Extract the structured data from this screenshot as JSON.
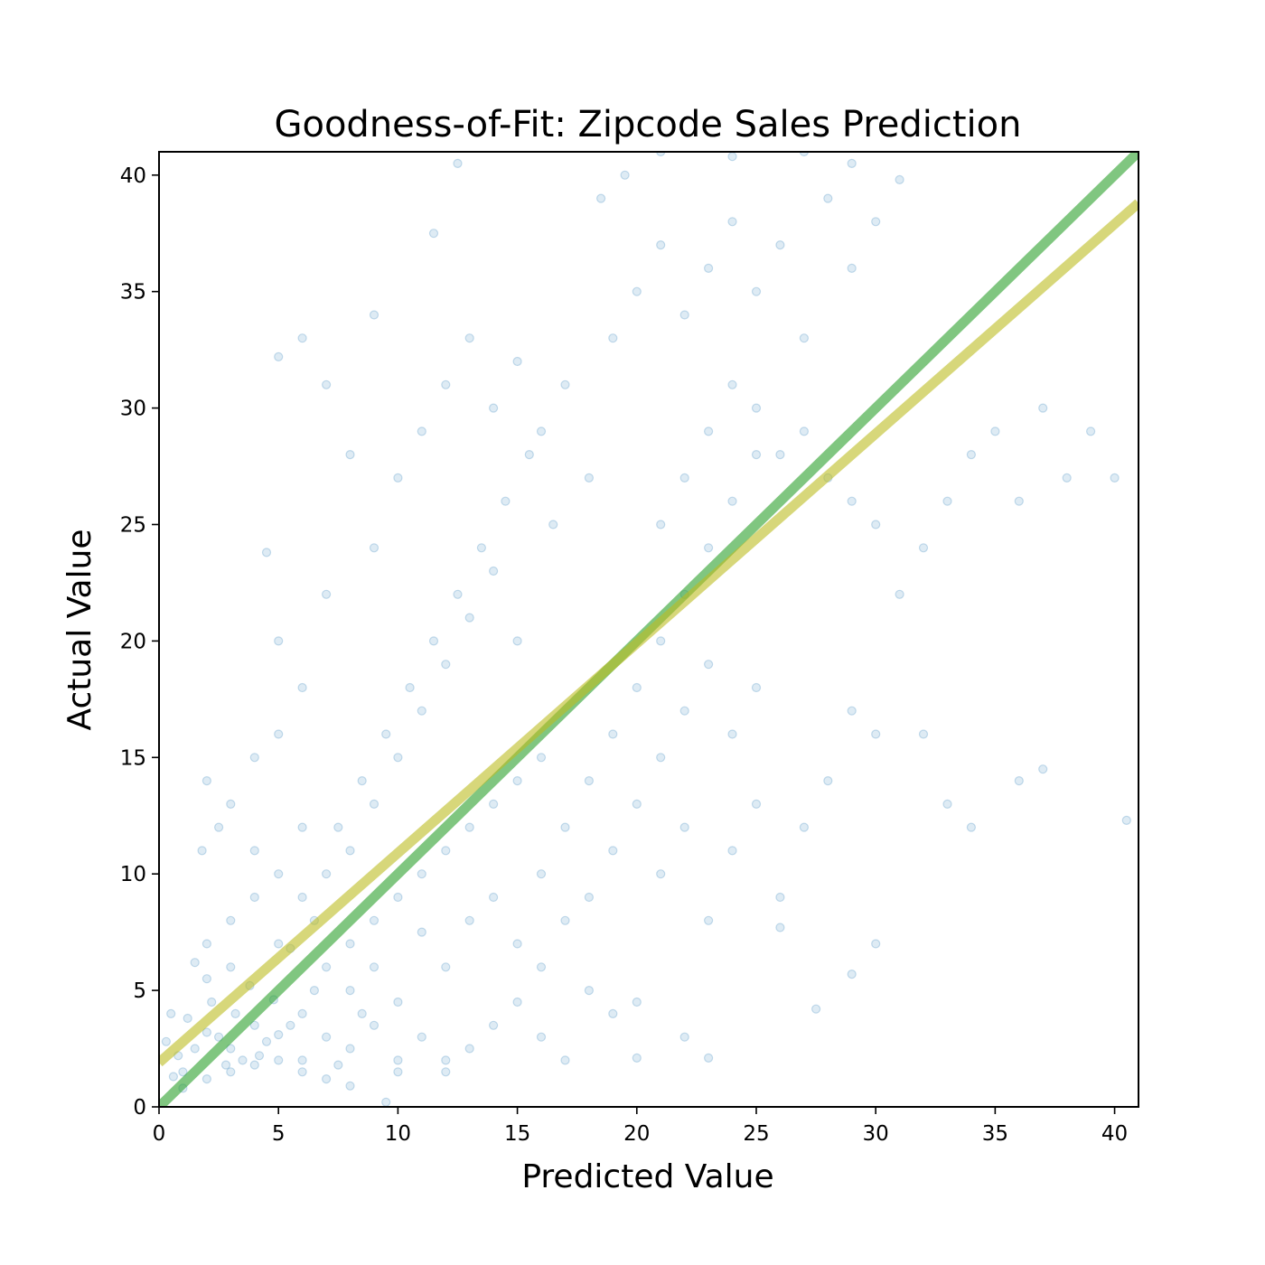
{
  "chart_data": {
    "type": "scatter",
    "title": "Goodness-of-Fit: Zipcode Sales Prediction",
    "xlabel": "Predicted Value",
    "ylabel": "Actual Value",
    "xlim": [
      0,
      41
    ],
    "ylim": [
      0,
      41
    ],
    "xticks": [
      "0",
      "5",
      "10",
      "15",
      "20",
      "25",
      "30",
      "35",
      "40"
    ],
    "yticks": [
      "0",
      "5",
      "10",
      "15",
      "20",
      "25",
      "30",
      "35",
      "40"
    ],
    "grid": false,
    "legend": "none",
    "series": [
      {
        "kind": "scatter",
        "color": "#1f77b4",
        "alpha": 0.15,
        "points": [
          [
            3,
            2.5
          ],
          [
            2.5,
            3
          ],
          [
            4,
            3.5
          ],
          [
            3.5,
            2
          ],
          [
            1,
            1.5
          ],
          [
            1.5,
            2.5
          ],
          [
            2,
            3.2
          ],
          [
            4.5,
            2.8
          ],
          [
            5,
            3.1
          ],
          [
            3.2,
            4
          ],
          [
            2.8,
            1.8
          ],
          [
            4.2,
            2.2
          ],
          [
            5.5,
            3.5
          ],
          [
            6,
            4
          ],
          [
            1.2,
            3.8
          ],
          [
            0.8,
            2.2
          ],
          [
            2.2,
            4.5
          ],
          [
            3.8,
            5.2
          ],
          [
            4.8,
            4.6
          ],
          [
            6.5,
            5
          ],
          [
            7,
            6
          ],
          [
            8,
            7
          ],
          [
            9,
            8
          ],
          [
            10,
            9
          ],
          [
            11,
            10
          ],
          [
            12,
            11
          ],
          [
            13,
            12
          ],
          [
            14,
            13
          ],
          [
            15,
            14
          ],
          [
            16,
            15
          ],
          [
            7.5,
            12
          ],
          [
            8.5,
            14
          ],
          [
            9.5,
            16
          ],
          [
            10.5,
            18
          ],
          [
            11.5,
            20
          ],
          [
            12.5,
            22
          ],
          [
            13.5,
            24
          ],
          [
            14.5,
            26
          ],
          [
            15.5,
            28
          ],
          [
            16.5,
            25
          ],
          [
            6,
            9
          ],
          [
            7,
            10
          ],
          [
            8,
            11
          ],
          [
            9,
            13
          ],
          [
            10,
            15
          ],
          [
            11,
            17
          ],
          [
            12,
            19
          ],
          [
            13,
            21
          ],
          [
            14,
            23
          ],
          [
            15,
            20
          ],
          [
            5,
            7
          ],
          [
            6.5,
            8
          ],
          [
            8,
            5
          ],
          [
            9,
            6
          ],
          [
            10,
            4.5
          ],
          [
            11,
            7.5
          ],
          [
            12,
            6
          ],
          [
            13,
            8
          ],
          [
            14,
            9
          ],
          [
            15,
            7
          ],
          [
            16,
            10
          ],
          [
            17,
            12
          ],
          [
            18,
            14
          ],
          [
            19,
            16
          ],
          [
            20,
            18
          ],
          [
            21,
            20
          ],
          [
            22,
            22
          ],
          [
            23,
            24
          ],
          [
            24,
            26
          ],
          [
            25,
            28
          ],
          [
            16,
            6
          ],
          [
            17,
            8
          ],
          [
            18,
            9
          ],
          [
            19,
            11
          ],
          [
            20,
            13
          ],
          [
            21,
            15
          ],
          [
            22,
            17
          ],
          [
            23,
            19
          ],
          [
            24,
            16
          ],
          [
            25,
            18
          ],
          [
            3,
            8
          ],
          [
            4,
            9
          ],
          [
            2,
            7
          ],
          [
            5,
            10
          ],
          [
            6,
            12
          ],
          [
            4,
            11
          ],
          [
            3,
            6
          ],
          [
            2,
            5.5
          ],
          [
            1.5,
            6.2
          ],
          [
            5.5,
            6.8
          ],
          [
            7,
            3
          ],
          [
            8,
            2.5
          ],
          [
            9,
            3.5
          ],
          [
            6,
            2
          ],
          [
            7.5,
            1.8
          ],
          [
            8.5,
            4
          ],
          [
            10,
            2
          ],
          [
            12,
            1.5
          ],
          [
            11,
            3
          ],
          [
            13,
            2.5
          ],
          [
            2,
            14
          ],
          [
            3,
            13
          ],
          [
            4,
            15
          ],
          [
            5,
            16
          ],
          [
            6,
            18
          ],
          [
            5,
            20
          ],
          [
            7,
            22
          ],
          [
            9,
            24
          ],
          [
            8,
            28
          ],
          [
            10,
            27
          ],
          [
            11,
            29
          ],
          [
            12,
            31
          ],
          [
            13,
            33
          ],
          [
            14,
            30
          ],
          [
            15,
            32
          ],
          [
            16,
            29
          ],
          [
            17,
            31
          ],
          [
            18,
            27
          ],
          [
            19,
            33
          ],
          [
            20,
            35
          ],
          [
            21,
            37
          ],
          [
            22,
            34
          ],
          [
            23,
            36
          ],
          [
            24,
            38
          ],
          [
            25,
            35
          ],
          [
            26,
            37
          ],
          [
            27,
            33
          ],
          [
            28,
            39
          ],
          [
            29,
            36
          ],
          [
            30,
            38
          ],
          [
            21,
            25
          ],
          [
            22,
            27
          ],
          [
            23,
            29
          ],
          [
            24,
            31
          ],
          [
            25,
            30
          ],
          [
            26,
            28
          ],
          [
            27,
            29
          ],
          [
            28,
            27
          ],
          [
            29,
            26
          ],
          [
            30,
            25
          ],
          [
            21,
            10
          ],
          [
            22,
            12
          ],
          [
            23,
            8
          ],
          [
            24,
            11
          ],
          [
            25,
            13
          ],
          [
            26,
            9
          ],
          [
            27,
            12
          ],
          [
            28,
            14
          ],
          [
            29,
            17
          ],
          [
            30,
            16
          ],
          [
            31,
            22
          ],
          [
            32,
            24
          ],
          [
            33,
            26
          ],
          [
            34,
            28
          ],
          [
            35,
            29
          ],
          [
            36,
            26
          ],
          [
            37,
            30
          ],
          [
            38,
            27
          ],
          [
            39,
            29
          ],
          [
            40,
            27
          ],
          [
            32,
            16
          ],
          [
            33,
            13
          ],
          [
            34,
            12
          ],
          [
            36,
            14
          ],
          [
            37,
            14.5
          ],
          [
            40.5,
            12.3
          ],
          [
            30,
            7
          ],
          [
            29,
            5.7
          ],
          [
            27.5,
            4.2
          ],
          [
            26,
            7.7
          ],
          [
            18.5,
            39
          ],
          [
            19.5,
            40
          ],
          [
            21,
            41
          ],
          [
            24,
            40.8
          ],
          [
            27,
            41
          ],
          [
            29,
            40.5
          ],
          [
            31,
            39.8
          ],
          [
            6,
            33
          ],
          [
            5,
            32.2
          ],
          [
            4.5,
            23.8
          ],
          [
            9,
            34
          ],
          [
            11.5,
            37.5
          ],
          [
            12.5,
            40.5
          ],
          [
            7,
            31
          ],
          [
            2.5,
            12
          ],
          [
            1.8,
            11
          ],
          [
            0.5,
            4
          ],
          [
            0.3,
            2.8
          ],
          [
            0.6,
            1.3
          ],
          [
            1,
            0.8
          ],
          [
            2,
            1.2
          ],
          [
            3,
            1.5
          ],
          [
            4,
            1.8
          ],
          [
            5,
            2
          ],
          [
            6,
            1.5
          ],
          [
            7,
            1.2
          ],
          [
            8,
            0.9
          ],
          [
            9.5,
            0.2
          ],
          [
            10,
            1.5
          ],
          [
            12,
            2
          ],
          [
            14,
            3.5
          ],
          [
            15,
            4.5
          ],
          [
            16,
            3
          ],
          [
            17,
            2
          ],
          [
            18,
            5
          ],
          [
            19,
            4
          ],
          [
            20,
            4.5
          ],
          [
            22,
            3
          ],
          [
            20,
            2.1
          ],
          [
            23,
            2.1
          ]
        ]
      },
      {
        "kind": "line",
        "name": "",
        "color": "#2ca02c",
        "alpha": 0.6,
        "x": [
          0,
          41
        ],
        "y": [
          0,
          41
        ]
      },
      {
        "kind": "line",
        "name": "",
        "color": "#bcbd22",
        "alpha": 0.6,
        "x": [
          0,
          41
        ],
        "y": [
          1.9,
          38.8
        ]
      }
    ]
  }
}
